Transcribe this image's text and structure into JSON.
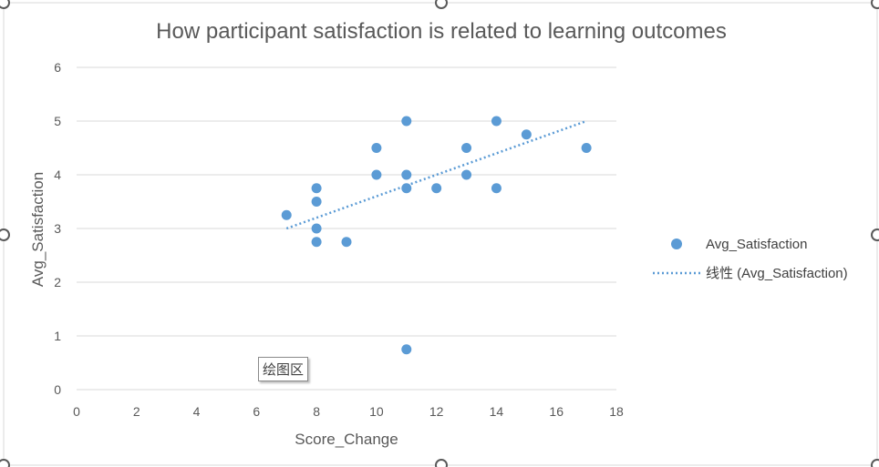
{
  "chart_data": {
    "type": "scatter",
    "title": "How participant satisfaction is related to learning outcomes",
    "xlabel": "Score_Change",
    "ylabel": "Avg_Satisfaction",
    "xlim": [
      0,
      18
    ],
    "ylim": [
      0,
      6
    ],
    "x_ticks": [
      0,
      2,
      4,
      6,
      8,
      10,
      12,
      14,
      16,
      18
    ],
    "y_ticks": [
      0,
      1,
      2,
      3,
      4,
      5,
      6
    ],
    "grid": "horizontal",
    "legend_position": "right",
    "series": [
      {
        "name": "Avg_Satisfaction",
        "color": "#5B9BD5",
        "points": [
          {
            "x": 7,
            "y": 3.25
          },
          {
            "x": 8,
            "y": 3.75
          },
          {
            "x": 8,
            "y": 3.5
          },
          {
            "x": 8,
            "y": 3.0
          },
          {
            "x": 8,
            "y": 2.75
          },
          {
            "x": 9,
            "y": 2.75
          },
          {
            "x": 10,
            "y": 4.5
          },
          {
            "x": 10,
            "y": 4.0
          },
          {
            "x": 11,
            "y": 5.0
          },
          {
            "x": 11,
            "y": 4.0
          },
          {
            "x": 11,
            "y": 3.75
          },
          {
            "x": 11,
            "y": 0.75
          },
          {
            "x": 12,
            "y": 3.75
          },
          {
            "x": 13,
            "y": 4.5
          },
          {
            "x": 13,
            "y": 4.0
          },
          {
            "x": 14,
            "y": 5.0
          },
          {
            "x": 14,
            "y": 3.75
          },
          {
            "x": 15,
            "y": 4.75
          },
          {
            "x": 17,
            "y": 4.5
          }
        ]
      }
    ],
    "trendline": {
      "name": "线性 (Avg_Satisfaction)",
      "type": "linear",
      "color": "#5B9BD5",
      "style": "dotted",
      "from": {
        "x": 7,
        "y": 3.0
      },
      "to": {
        "x": 17,
        "y": 5.0
      }
    }
  },
  "tooltip": {
    "text": "绘图区"
  }
}
